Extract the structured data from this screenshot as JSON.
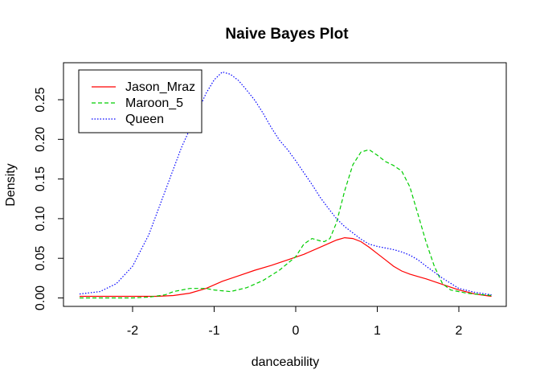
{
  "chart_data": {
    "type": "line",
    "title": "Naive Bayes Plot",
    "xlabel": "danceability",
    "ylabel": "Density",
    "xlim": [
      -2.63,
      2.4
    ],
    "ylim": [
      0,
      0.285
    ],
    "x_ticks": [
      -2,
      -1,
      0,
      1,
      2
    ],
    "x_tick_labels": [
      "-2",
      "-1",
      "0",
      "1",
      "2"
    ],
    "y_ticks": [
      0.0,
      0.05,
      0.1,
      0.15,
      0.2,
      0.25
    ],
    "y_tick_labels": [
      "0.00",
      "0.05",
      "0.10",
      "0.15",
      "0.20",
      "0.25"
    ],
    "grid": false,
    "legend_position": "top-left",
    "series": [
      {
        "name": "Jason_Mraz",
        "color": "#ff0000",
        "line_style": "solid",
        "points": [
          [
            -2.65,
            0.002
          ],
          [
            -2.3,
            0.002
          ],
          [
            -2.0,
            0.002
          ],
          [
            -1.7,
            0.002
          ],
          [
            -1.5,
            0.003
          ],
          [
            -1.3,
            0.006
          ],
          [
            -1.1,
            0.012
          ],
          [
            -0.9,
            0.021
          ],
          [
            -0.7,
            0.028
          ],
          [
            -0.5,
            0.035
          ],
          [
            -0.3,
            0.041
          ],
          [
            -0.1,
            0.048
          ],
          [
            0.1,
            0.055
          ],
          [
            0.3,
            0.064
          ],
          [
            0.5,
            0.073
          ],
          [
            0.6,
            0.076
          ],
          [
            0.7,
            0.075
          ],
          [
            0.8,
            0.071
          ],
          [
            0.9,
            0.064
          ],
          [
            1.0,
            0.056
          ],
          [
            1.1,
            0.048
          ],
          [
            1.2,
            0.04
          ],
          [
            1.3,
            0.034
          ],
          [
            1.4,
            0.03
          ],
          [
            1.5,
            0.027
          ],
          [
            1.6,
            0.024
          ],
          [
            1.8,
            0.017
          ],
          [
            2.0,
            0.01
          ],
          [
            2.2,
            0.005
          ],
          [
            2.4,
            0.002
          ]
        ]
      },
      {
        "name": "Maroon_5",
        "color": "#00cd00",
        "line_style": "dashed",
        "points": [
          [
            -2.65,
            0.0
          ],
          [
            -2.3,
            0.0
          ],
          [
            -2.0,
            0.0
          ],
          [
            -1.8,
            0.001
          ],
          [
            -1.6,
            0.004
          ],
          [
            -1.5,
            0.008
          ],
          [
            -1.3,
            0.012
          ],
          [
            -1.1,
            0.012
          ],
          [
            -1.0,
            0.01
          ],
          [
            -0.9,
            0.009
          ],
          [
            -0.8,
            0.008
          ],
          [
            -0.6,
            0.013
          ],
          [
            -0.4,
            0.022
          ],
          [
            -0.2,
            0.035
          ],
          [
            0.0,
            0.052
          ],
          [
            0.1,
            0.068
          ],
          [
            0.2,
            0.075
          ],
          [
            0.3,
            0.072
          ],
          [
            0.35,
            0.071
          ],
          [
            0.42,
            0.075
          ],
          [
            0.5,
            0.095
          ],
          [
            0.6,
            0.135
          ],
          [
            0.7,
            0.168
          ],
          [
            0.8,
            0.184
          ],
          [
            0.9,
            0.187
          ],
          [
            1.0,
            0.18
          ],
          [
            1.1,
            0.172
          ],
          [
            1.2,
            0.167
          ],
          [
            1.3,
            0.16
          ],
          [
            1.4,
            0.14
          ],
          [
            1.5,
            0.105
          ],
          [
            1.6,
            0.07
          ],
          [
            1.7,
            0.04
          ],
          [
            1.8,
            0.018
          ],
          [
            1.9,
            0.01
          ],
          [
            2.1,
            0.006
          ],
          [
            2.3,
            0.004
          ],
          [
            2.4,
            0.003
          ]
        ]
      },
      {
        "name": "Queen",
        "color": "#0000ff",
        "line_style": "dotted",
        "points": [
          [
            -2.65,
            0.005
          ],
          [
            -2.4,
            0.008
          ],
          [
            -2.2,
            0.018
          ],
          [
            -2.0,
            0.04
          ],
          [
            -1.8,
            0.08
          ],
          [
            -1.6,
            0.135
          ],
          [
            -1.4,
            0.19
          ],
          [
            -1.2,
            0.235
          ],
          [
            -1.1,
            0.258
          ],
          [
            -1.0,
            0.275
          ],
          [
            -0.9,
            0.285
          ],
          [
            -0.8,
            0.282
          ],
          [
            -0.7,
            0.274
          ],
          [
            -0.6,
            0.262
          ],
          [
            -0.5,
            0.249
          ],
          [
            -0.4,
            0.233
          ],
          [
            -0.3,
            0.215
          ],
          [
            -0.2,
            0.199
          ],
          [
            -0.1,
            0.187
          ],
          [
            0.0,
            0.173
          ],
          [
            0.1,
            0.158
          ],
          [
            0.2,
            0.143
          ],
          [
            0.3,
            0.127
          ],
          [
            0.4,
            0.113
          ],
          [
            0.5,
            0.1
          ],
          [
            0.6,
            0.09
          ],
          [
            0.7,
            0.082
          ],
          [
            0.8,
            0.074
          ],
          [
            0.9,
            0.068
          ],
          [
            1.0,
            0.065
          ],
          [
            1.1,
            0.063
          ],
          [
            1.2,
            0.061
          ],
          [
            1.3,
            0.058
          ],
          [
            1.4,
            0.054
          ],
          [
            1.5,
            0.048
          ],
          [
            1.6,
            0.04
          ],
          [
            1.8,
            0.025
          ],
          [
            2.0,
            0.012
          ],
          [
            2.2,
            0.007
          ],
          [
            2.4,
            0.004
          ]
        ]
      }
    ]
  }
}
